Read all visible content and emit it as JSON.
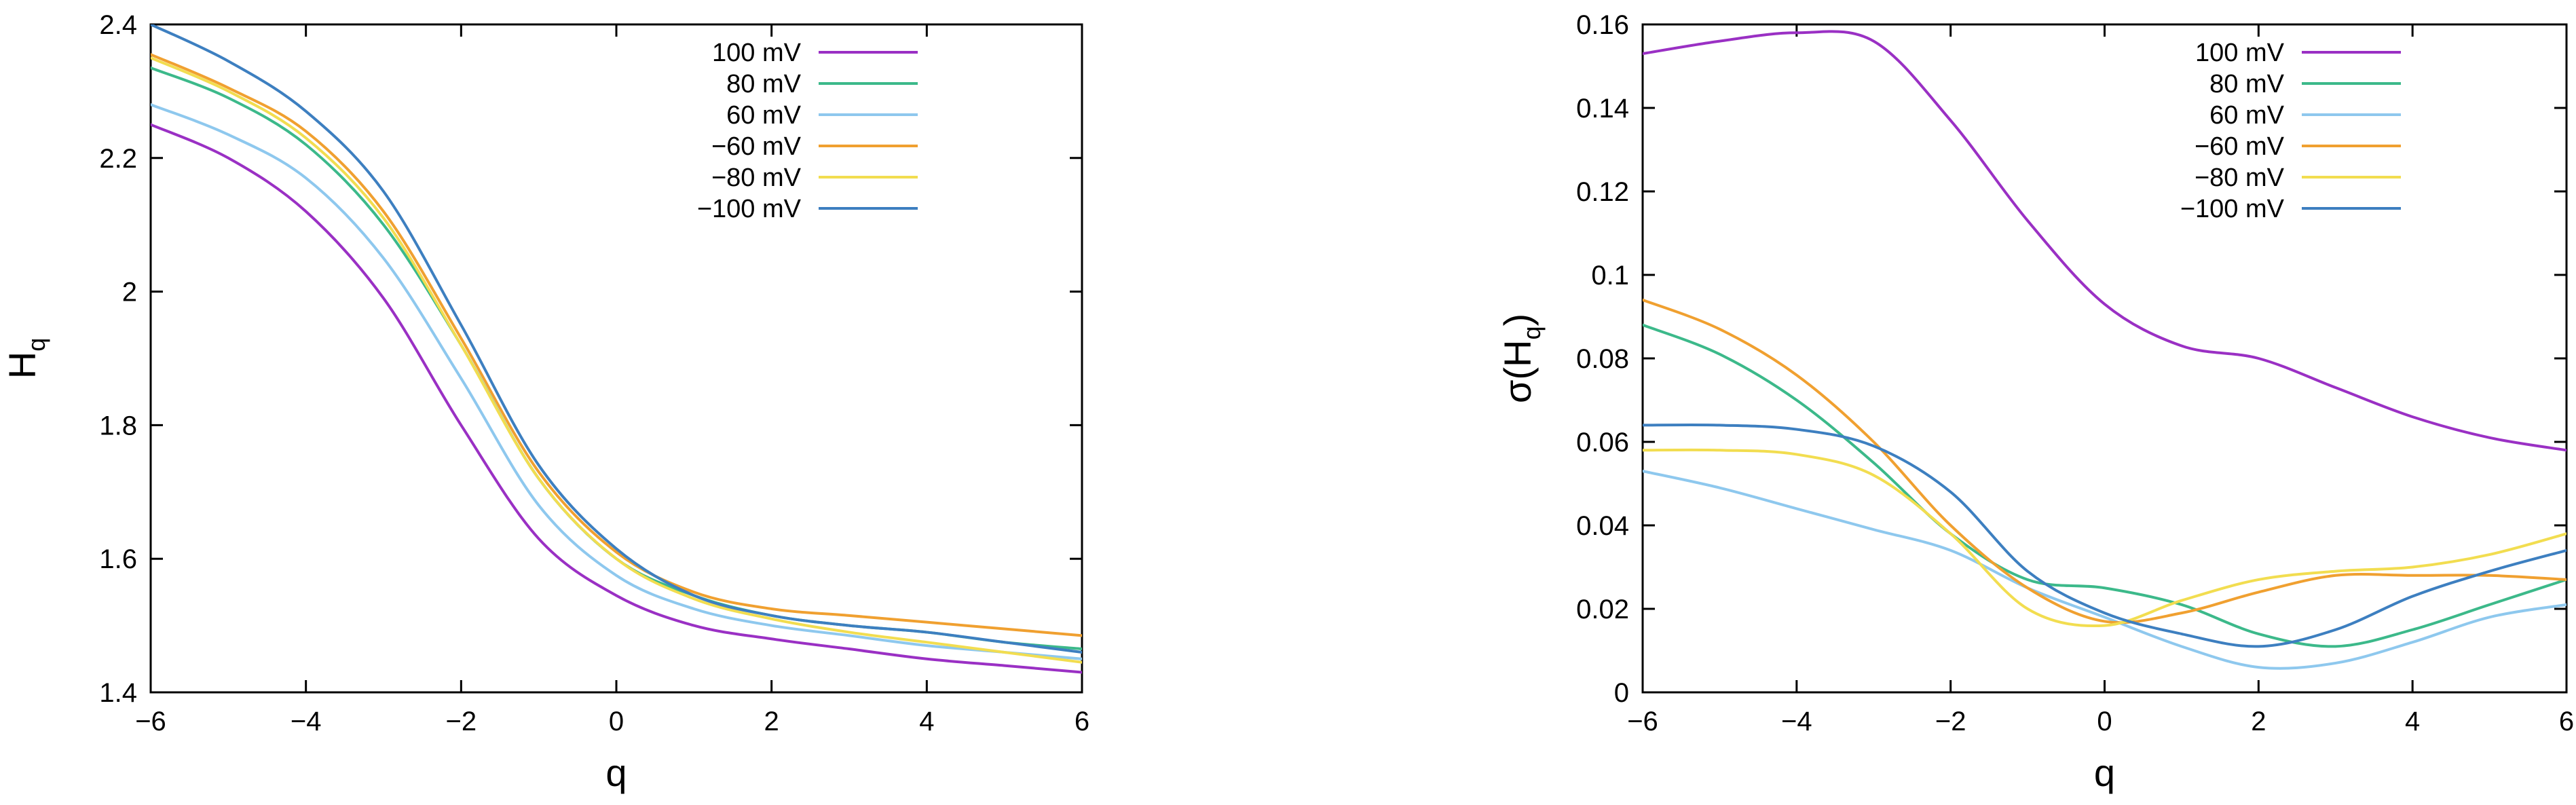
{
  "chart_data": [
    {
      "type": "line",
      "title": "",
      "xlabel": "q",
      "ylabel": "H",
      "ylabel_sub": "q",
      "xlim": [
        -6,
        6
      ],
      "ylim": [
        1.4,
        2.4
      ],
      "xticks": [
        -6,
        -4,
        -2,
        0,
        2,
        4,
        6
      ],
      "xtick_labels": [
        "−6",
        "−4",
        "−2",
        "0",
        "2",
        "4",
        "6"
      ],
      "yticks": [
        1.4,
        1.6,
        1.8,
        2.0,
        2.2,
        2.4
      ],
      "ytick_labels": [
        "1.4",
        "1.6",
        "1.8",
        "2",
        "2.2",
        "2.4"
      ],
      "grid": false,
      "legend_position": "top-right",
      "x": [
        -6,
        -5,
        -4,
        -3,
        -2,
        -1,
        0,
        1,
        2,
        3,
        4,
        5,
        6
      ],
      "series": [
        {
          "name": "100 mV",
          "color": "#9a30c4",
          "values": [
            2.25,
            2.2,
            2.12,
            1.99,
            1.8,
            1.63,
            1.545,
            1.5,
            1.48,
            1.465,
            1.45,
            1.44,
            1.43
          ]
        },
        {
          "name": "80 mV",
          "color": "#3cb98a",
          "values": [
            2.335,
            2.29,
            2.22,
            2.1,
            1.92,
            1.72,
            1.6,
            1.545,
            1.515,
            1.5,
            1.49,
            1.475,
            1.465
          ]
        },
        {
          "name": "60 mV",
          "color": "#8ec8ee",
          "values": [
            2.28,
            2.235,
            2.17,
            2.05,
            1.87,
            1.68,
            1.575,
            1.525,
            1.5,
            1.485,
            1.47,
            1.46,
            1.45
          ]
        },
        {
          "name": "−60 mV",
          "color": "#f0a030",
          "values": [
            2.355,
            2.305,
            2.24,
            2.12,
            1.93,
            1.73,
            1.61,
            1.55,
            1.525,
            1.515,
            1.505,
            1.495,
            1.485
          ]
        },
        {
          "name": "−80 mV",
          "color": "#f2dd50",
          "values": [
            2.35,
            2.3,
            2.23,
            2.11,
            1.92,
            1.72,
            1.6,
            1.54,
            1.51,
            1.49,
            1.475,
            1.46,
            1.445
          ]
        },
        {
          "name": "−100 mV",
          "color": "#3d7fc0",
          "values": [
            2.4,
            2.345,
            2.27,
            2.15,
            1.95,
            1.74,
            1.615,
            1.545,
            1.515,
            1.5,
            1.49,
            1.475,
            1.46
          ]
        }
      ]
    },
    {
      "type": "line",
      "title": "",
      "xlabel": "q",
      "ylabel": "σ(H",
      "ylabel_sub": "q",
      "ylabel_close": ")",
      "xlim": [
        -6,
        6
      ],
      "ylim": [
        0,
        0.16
      ],
      "xticks": [
        -6,
        -4,
        -2,
        0,
        2,
        4,
        6
      ],
      "xtick_labels": [
        "−6",
        "−4",
        "−2",
        "0",
        "2",
        "4",
        "6"
      ],
      "yticks": [
        0,
        0.02,
        0.04,
        0.06,
        0.08,
        0.1,
        0.12,
        0.14,
        0.16
      ],
      "ytick_labels": [
        "0",
        "0.02",
        "0.04",
        "0.06",
        "0.08",
        "0.1",
        "0.12",
        "0.14",
        "0.16"
      ],
      "grid": false,
      "legend_position": "top-right",
      "x": [
        -6,
        -5,
        -4,
        -3,
        -2,
        -1,
        0,
        1,
        2,
        3,
        4,
        5,
        6
      ],
      "series": [
        {
          "name": "100 mV",
          "color": "#9a30c4",
          "values": [
            0.153,
            0.156,
            0.158,
            0.156,
            0.137,
            0.113,
            0.093,
            0.083,
            0.08,
            0.073,
            0.066,
            0.061,
            0.058
          ]
        },
        {
          "name": "80 mV",
          "color": "#3cb98a",
          "values": [
            0.088,
            0.081,
            0.07,
            0.055,
            0.038,
            0.027,
            0.025,
            0.021,
            0.014,
            0.011,
            0.015,
            0.021,
            0.027
          ]
        },
        {
          "name": "60 mV",
          "color": "#8ec8ee",
          "values": [
            0.053,
            0.049,
            0.044,
            0.039,
            0.034,
            0.025,
            0.018,
            0.011,
            0.006,
            0.007,
            0.012,
            0.018,
            0.021
          ]
        },
        {
          "name": "−60 mV",
          "color": "#f0a030",
          "values": [
            0.094,
            0.087,
            0.076,
            0.06,
            0.04,
            0.025,
            0.017,
            0.019,
            0.024,
            0.028,
            0.028,
            0.028,
            0.027
          ]
        },
        {
          "name": "−80 mV",
          "color": "#f2dd50",
          "values": [
            0.058,
            0.058,
            0.057,
            0.052,
            0.038,
            0.02,
            0.016,
            0.022,
            0.027,
            0.029,
            0.03,
            0.033,
            0.038
          ]
        },
        {
          "name": "−100 mV",
          "color": "#3d7fc0",
          "values": [
            0.064,
            0.064,
            0.063,
            0.059,
            0.048,
            0.029,
            0.019,
            0.014,
            0.011,
            0.015,
            0.023,
            0.029,
            0.034
          ]
        }
      ]
    }
  ]
}
